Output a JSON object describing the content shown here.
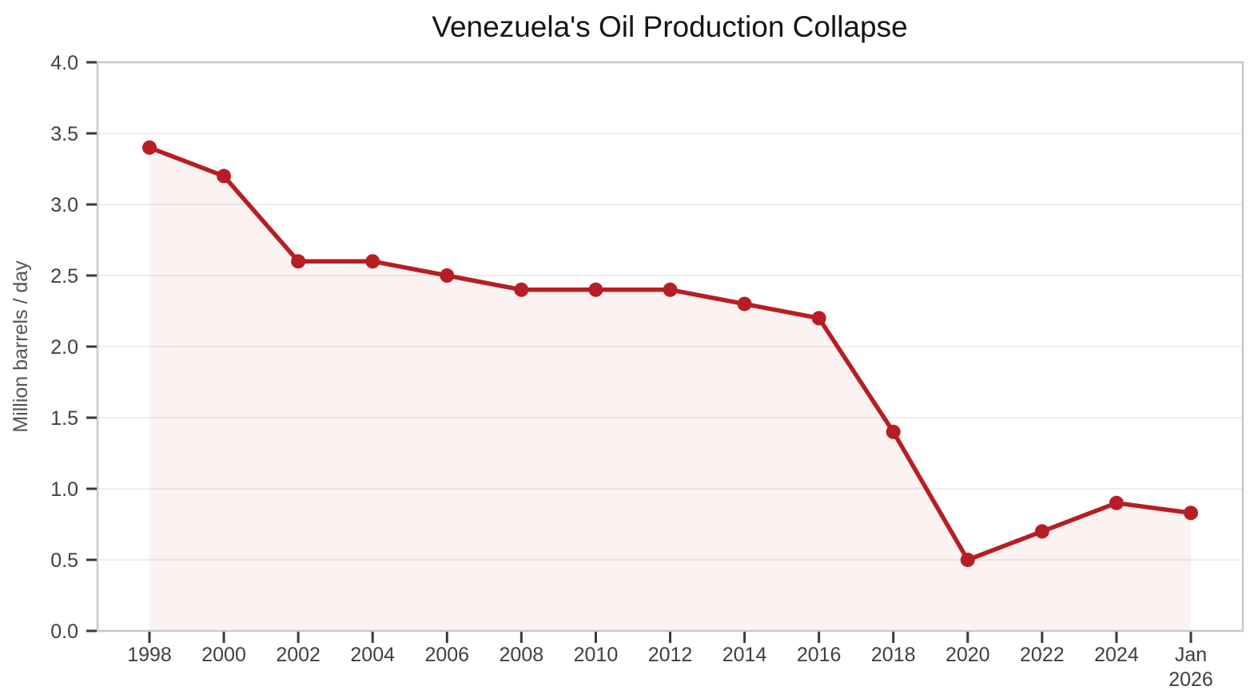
{
  "chart_data": {
    "type": "line",
    "title": "Venezuela's Oil Production Collapse",
    "xlabel": "",
    "ylabel": "Million barrels / day",
    "categories": [
      "1998",
      "2000",
      "2002",
      "2004",
      "2006",
      "2008",
      "2010",
      "2012",
      "2014",
      "2016",
      "2018",
      "2020",
      "2022",
      "2024",
      "Jan\n2026"
    ],
    "values": [
      3.4,
      3.2,
      2.6,
      2.6,
      2.5,
      2.4,
      2.4,
      2.4,
      2.3,
      2.2,
      1.4,
      0.5,
      0.7,
      0.9,
      0.83
    ],
    "ylim": [
      0,
      4
    ],
    "ytick_labels": [
      "0.0",
      "0.5",
      "1.0",
      "1.5",
      "2.0",
      "2.5",
      "3.0",
      "3.5",
      "4.0"
    ],
    "grid": "horizontal",
    "legend": "none",
    "marker": "circle",
    "area_fill": true,
    "colors": {
      "line": "#b71e24",
      "area": "rgba(183,30,36,0.06)",
      "grid": "#e8e8e8",
      "frame": "#ccc9c4",
      "tick": "#3a3a3a",
      "tick_label": "#404040",
      "title": "#151515",
      "axis_label": "#555555"
    }
  }
}
